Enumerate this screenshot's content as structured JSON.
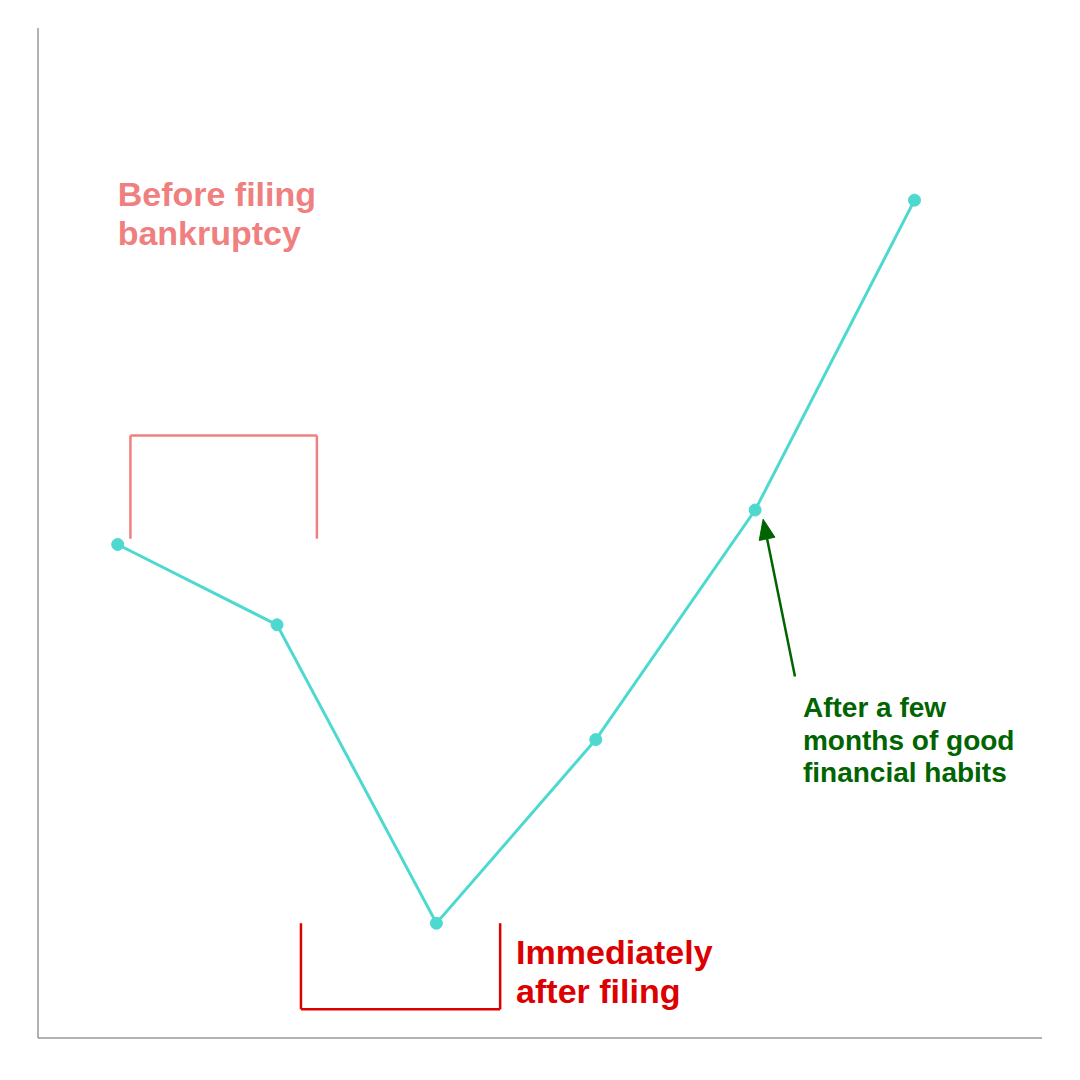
{
  "chart_data": {
    "type": "line",
    "x": [
      0,
      1,
      2,
      3,
      4,
      5
    ],
    "values": [
      5.5,
      4.8,
      2.2,
      3.8,
      5.8,
      8.5
    ],
    "color": "#4DD9D0",
    "marker": "circle",
    "xlim": [
      -0.5,
      5.8
    ],
    "ylim": [
      1.2,
      10.0
    ],
    "yticks": [
      2.5,
      5.0,
      7.5
    ],
    "grid": true,
    "tick_labels": false,
    "annotations": [
      {
        "text": "Before filing\nbankruptcy",
        "color": "#F08080"
      },
      {
        "text": "Immediately\nafter filing",
        "color": "#DD0000"
      },
      {
        "text": "After a few\nmonths of good\nfinancial habits",
        "color": "#006400"
      }
    ]
  }
}
